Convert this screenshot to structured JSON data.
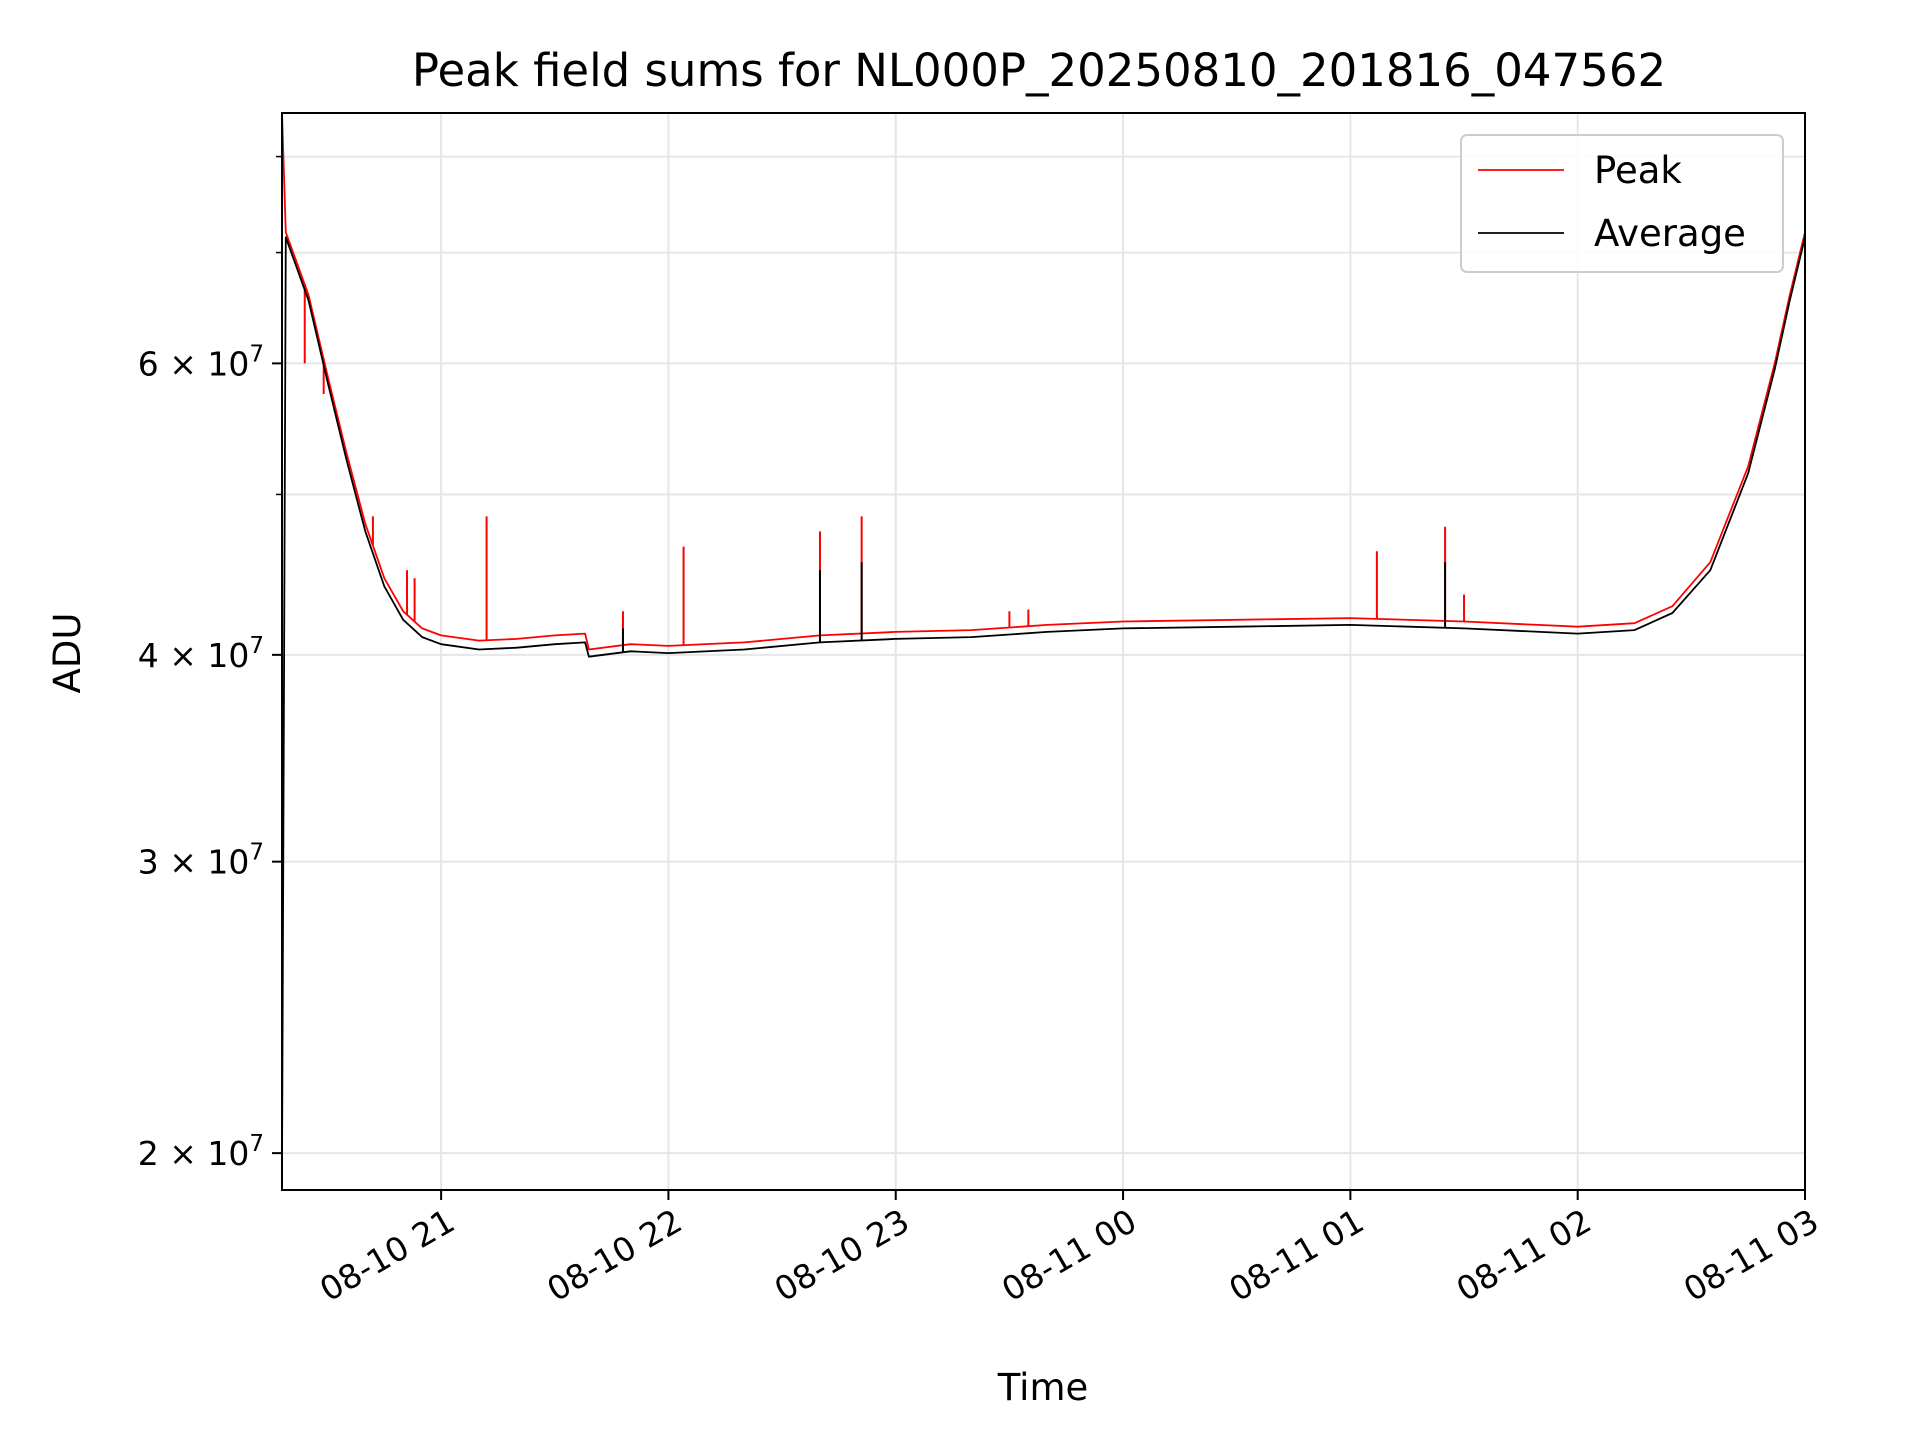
{
  "chart_data": {
    "type": "line",
    "title": "Peak field sums for NL000P_20250810_201816_047562",
    "xlabel": "Time",
    "ylabel": "ADU",
    "yscale": "log",
    "ylim": [
      19000000,
      85000000
    ],
    "xlim": [
      "2025-08-10 20:18",
      "2025-08-11 03:00"
    ],
    "grid": true,
    "legend_position": "top-right",
    "x_ticks": [
      {
        "t": "2025-08-10 21:00",
        "label": "08-10 21"
      },
      {
        "t": "2025-08-10 22:00",
        "label": "08-10 22"
      },
      {
        "t": "2025-08-10 23:00",
        "label": "08-10 23"
      },
      {
        "t": "2025-08-11 00:00",
        "label": "08-11 00"
      },
      {
        "t": "2025-08-11 01:00",
        "label": "08-11 01"
      },
      {
        "t": "2025-08-11 02:00",
        "label": "08-11 02"
      },
      {
        "t": "2025-08-11 03:00",
        "label": "08-11 03"
      }
    ],
    "y_ticks": [
      {
        "v": 20000000,
        "mantissa": "2",
        "exp": "7"
      },
      {
        "v": 30000000,
        "mantissa": "3",
        "exp": "7"
      },
      {
        "v": 40000000,
        "mantissa": "4",
        "exp": "7"
      },
      {
        "v": 60000000,
        "mantissa": "6",
        "exp": "7"
      }
    ],
    "y_minor_gridlines": [
      50000000,
      70000000,
      80000000
    ],
    "series": [
      {
        "name": "Peak",
        "color": "#ff0000",
        "points": [
          [
            "2025-08-10 20:18",
            85000000
          ],
          [
            "2025-08-10 20:19",
            72000000
          ],
          [
            "2025-08-10 20:25",
            66000000
          ],
          [
            "2025-08-10 20:30",
            59000000
          ],
          [
            "2025-08-10 20:35",
            53000000
          ],
          [
            "2025-08-10 20:40",
            48000000
          ],
          [
            "2025-08-10 20:45",
            44500000
          ],
          [
            "2025-08-10 20:50",
            42500000
          ],
          [
            "2025-08-10 20:55",
            41500000
          ],
          [
            "2025-08-10 21:00",
            41100000
          ],
          [
            "2025-08-10 21:10",
            40800000
          ],
          [
            "2025-08-10 21:20",
            40900000
          ],
          [
            "2025-08-10 21:30",
            41100000
          ],
          [
            "2025-08-10 21:38",
            41200000
          ],
          [
            "2025-08-10 21:39",
            40300000
          ],
          [
            "2025-08-10 21:50",
            40600000
          ],
          [
            "2025-08-10 22:00",
            40500000
          ],
          [
            "2025-08-10 22:20",
            40700000
          ],
          [
            "2025-08-10 22:40",
            41100000
          ],
          [
            "2025-08-10 23:00",
            41300000
          ],
          [
            "2025-08-10 23:20",
            41400000
          ],
          [
            "2025-08-10 23:40",
            41700000
          ],
          [
            "2025-08-11 00:00",
            41900000
          ],
          [
            "2025-08-11 00:30",
            42000000
          ],
          [
            "2025-08-11 01:00",
            42100000
          ],
          [
            "2025-08-11 01:30",
            41900000
          ],
          [
            "2025-08-11 02:00",
            41600000
          ],
          [
            "2025-08-11 02:15",
            41800000
          ],
          [
            "2025-08-11 02:25",
            42800000
          ],
          [
            "2025-08-11 02:35",
            45500000
          ],
          [
            "2025-08-11 02:45",
            52000000
          ],
          [
            "2025-08-11 02:52",
            60000000
          ],
          [
            "2025-08-11 02:56",
            66000000
          ],
          [
            "2025-08-11 03:00",
            72000000
          ]
        ],
        "spikes": [
          [
            "2025-08-10 20:24",
            60000000
          ],
          [
            "2025-08-10 20:29",
            57500000
          ],
          [
            "2025-08-10 20:39",
            49000000
          ],
          [
            "2025-08-10 20:42",
            48500000
          ],
          [
            "2025-08-10 20:51",
            45000000
          ],
          [
            "2025-08-10 20:53",
            44500000
          ],
          [
            "2025-08-10 21:12",
            48500000
          ],
          [
            "2025-08-10 21:48",
            42500000
          ],
          [
            "2025-08-10 22:04",
            46500000
          ],
          [
            "2025-08-10 22:40",
            47500000
          ],
          [
            "2025-08-10 22:51",
            48500000
          ],
          [
            "2025-08-10 23:30",
            42500000
          ],
          [
            "2025-08-10 23:35",
            42600000
          ],
          [
            "2025-08-11 01:07",
            46200000
          ],
          [
            "2025-08-11 01:25",
            47800000
          ],
          [
            "2025-08-11 01:30",
            43500000
          ]
        ]
      },
      {
        "name": "Average",
        "color": "#000000",
        "points": [
          [
            "2025-08-10 20:18",
            19500000
          ],
          [
            "2025-08-10 20:19",
            71500000
          ],
          [
            "2025-08-10 20:25",
            65500000
          ],
          [
            "2025-08-10 20:30",
            58500000
          ],
          [
            "2025-08-10 20:35",
            52500000
          ],
          [
            "2025-08-10 20:40",
            47500000
          ],
          [
            "2025-08-10 20:45",
            44000000
          ],
          [
            "2025-08-10 20:50",
            42000000
          ],
          [
            "2025-08-10 20:55",
            41000000
          ],
          [
            "2025-08-10 21:00",
            40600000
          ],
          [
            "2025-08-10 21:10",
            40300000
          ],
          [
            "2025-08-10 21:20",
            40400000
          ],
          [
            "2025-08-10 21:30",
            40600000
          ],
          [
            "2025-08-10 21:38",
            40700000
          ],
          [
            "2025-08-10 21:39",
            39900000
          ],
          [
            "2025-08-10 21:50",
            40200000
          ],
          [
            "2025-08-10 22:00",
            40100000
          ],
          [
            "2025-08-10 22:20",
            40300000
          ],
          [
            "2025-08-10 22:40",
            40700000
          ],
          [
            "2025-08-10 23:00",
            40900000
          ],
          [
            "2025-08-10 23:20",
            41000000
          ],
          [
            "2025-08-10 23:40",
            41300000
          ],
          [
            "2025-08-11 00:00",
            41500000
          ],
          [
            "2025-08-11 00:30",
            41600000
          ],
          [
            "2025-08-11 01:00",
            41700000
          ],
          [
            "2025-08-11 01:30",
            41500000
          ],
          [
            "2025-08-11 02:00",
            41200000
          ],
          [
            "2025-08-11 02:15",
            41400000
          ],
          [
            "2025-08-11 02:25",
            42400000
          ],
          [
            "2025-08-11 02:35",
            45000000
          ],
          [
            "2025-08-11 02:45",
            51500000
          ],
          [
            "2025-08-11 02:52",
            59500000
          ],
          [
            "2025-08-11 02:56",
            65500000
          ],
          [
            "2025-08-11 03:00",
            71500000
          ]
        ],
        "spikes": [
          [
            "2025-08-10 22:40",
            45000000
          ],
          [
            "2025-08-10 22:51",
            45500000
          ],
          [
            "2025-08-11 01:25",
            45500000
          ],
          [
            "2025-08-10 21:48",
            41500000
          ]
        ]
      }
    ]
  }
}
